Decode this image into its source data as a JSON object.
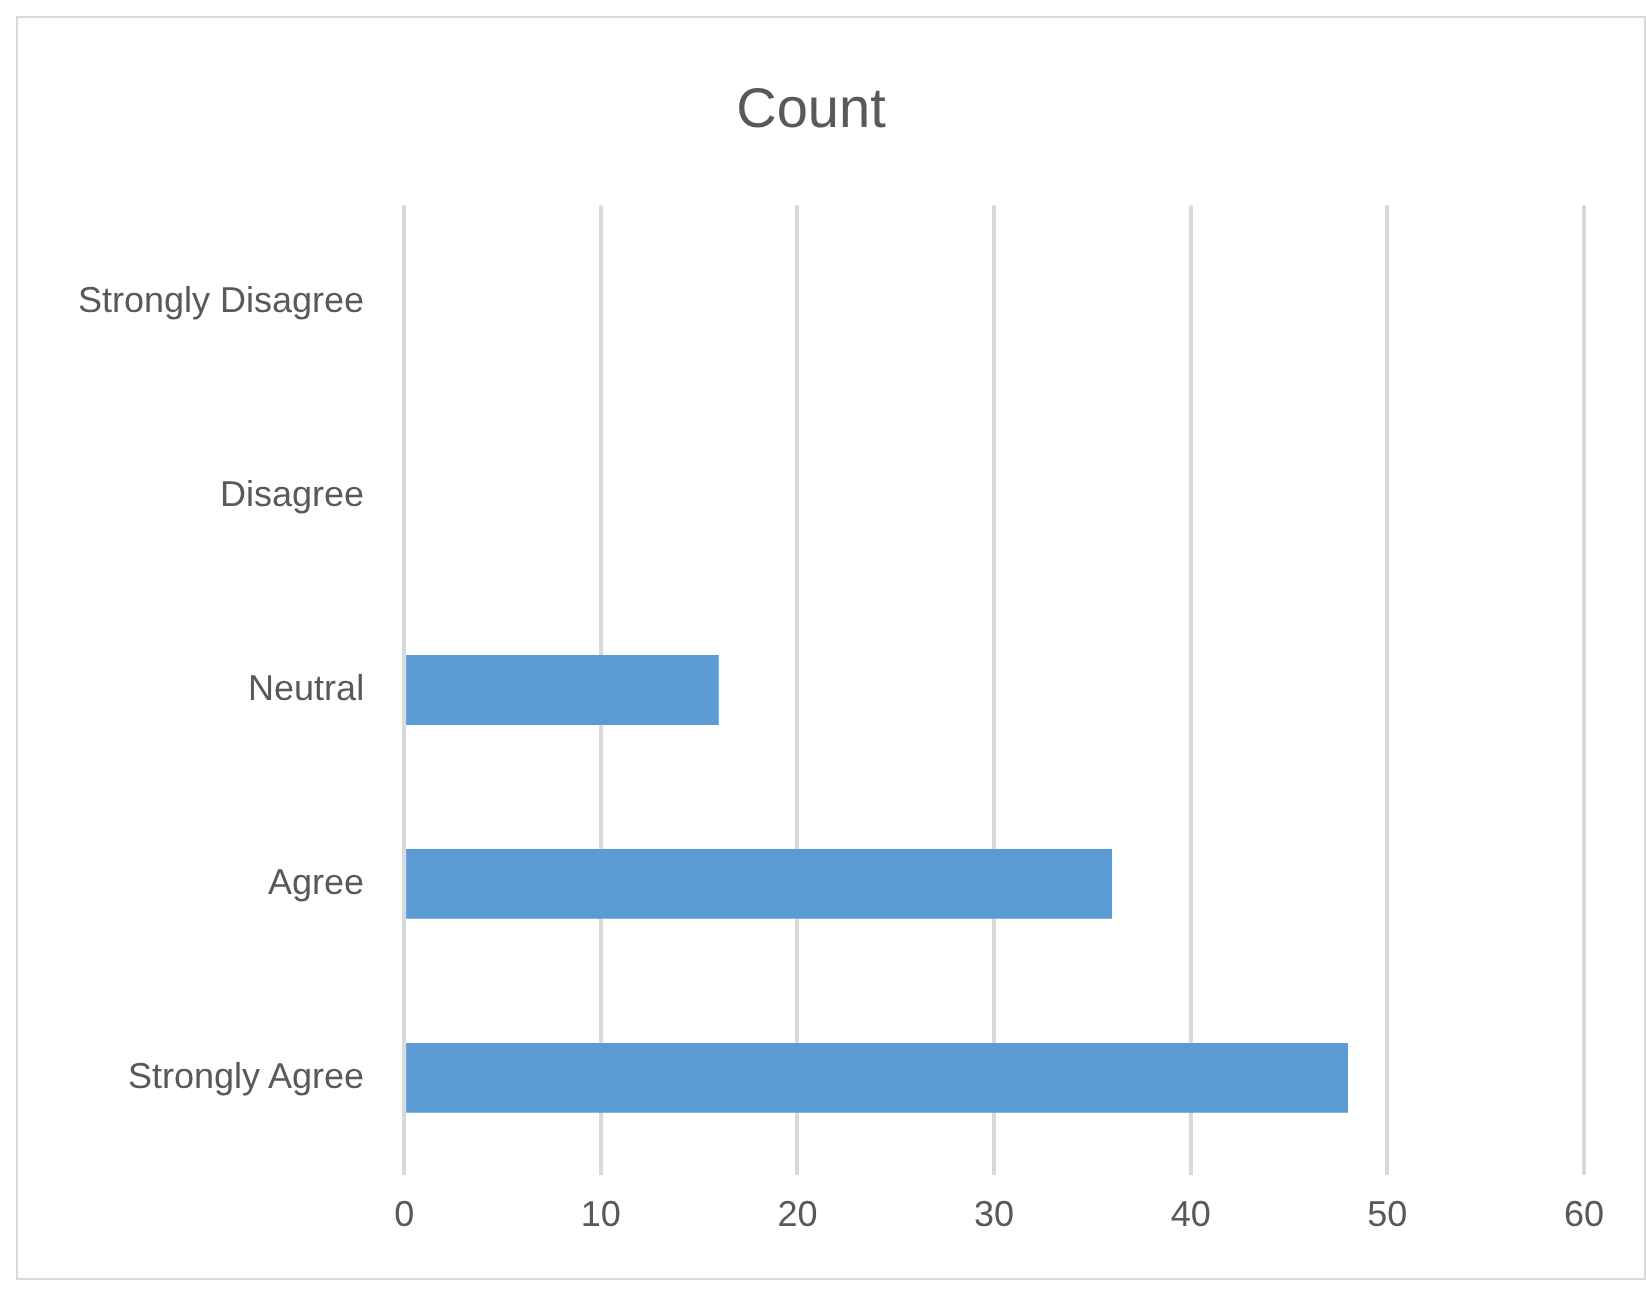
{
  "chart_data": {
    "type": "bar",
    "orientation": "horizontal",
    "title": "Count",
    "categories": [
      "Strongly Disagree",
      "Disagree",
      "Neutral",
      "Agree",
      "Strongly Agree"
    ],
    "values": [
      0,
      0,
      16,
      36,
      48
    ],
    "color": "#5b9bd5",
    "xlim": [
      0,
      60
    ],
    "xticks": [
      0,
      10,
      20,
      30,
      40,
      50,
      60
    ],
    "grid": "x",
    "legend": false
  }
}
